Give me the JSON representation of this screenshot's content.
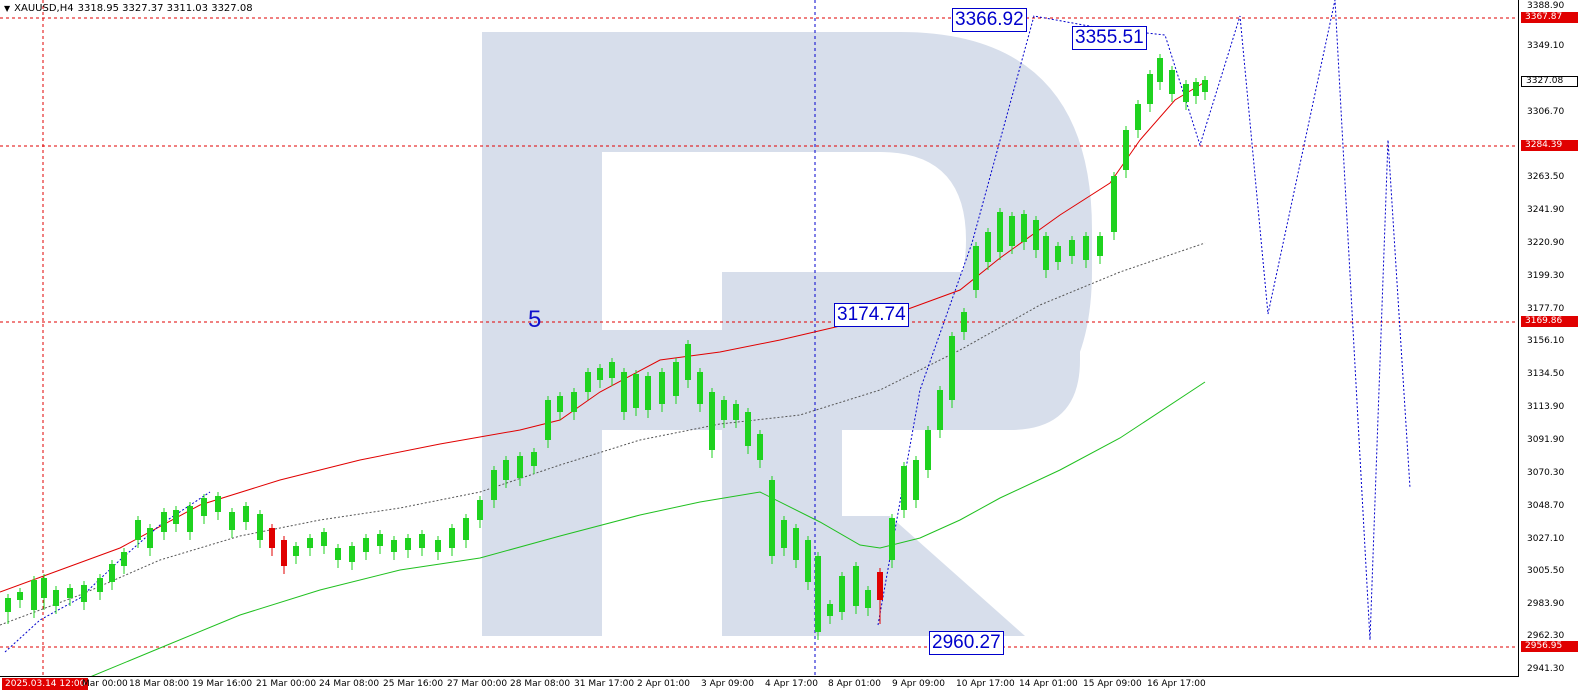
{
  "header": {
    "symbol_timeframe": "XAUUSD,H4",
    "ohlc": "3318.95 3327.37 3311.03 3327.08"
  },
  "price_axis": {
    "ticks": [
      "3349.10",
      "3327.08",
      "3306.70",
      "3263.50",
      "3241.90",
      "3220.90",
      "3199.30",
      "3177.70",
      "3156.10",
      "3134.50",
      "3113.90",
      "3091.90",
      "3070.30",
      "3048.70",
      "3027.10",
      "3005.50",
      "2983.90",
      "2962.30",
      "2941.30",
      "3388.90"
    ]
  },
  "badges": {
    "top_level": "3367.87",
    "current_price": "3327.08",
    "resistance": "3284.39",
    "mid_level": "3169.86",
    "bottom_level": "2956.95"
  },
  "time_axis": {
    "start_badge": "2025.03.14 12:00",
    "labels": [
      "Mar 00:00",
      "18 Mar 08:00",
      "19 Mar 16:00",
      "21 Mar 00:00",
      "24 Mar 08:00",
      "25 Mar 16:00",
      "27 Mar 00:00",
      "28 Mar 08:00",
      "31 Mar 17:00",
      "2 Apr 01:00",
      "3 Apr 09:00",
      "4 Apr 17:00",
      "8 Apr 01:00",
      "9 Apr 09:00",
      "10 Apr 17:00",
      "14 Apr 01:00",
      "15 Apr 09:00",
      "16 Apr 17:00"
    ]
  },
  "annotations": {
    "wave_label": "5",
    "level_high": "3366.92",
    "level_peak": "3355.51",
    "level_mid": "3174.74",
    "level_low": "2960.27"
  },
  "colors": {
    "bull": "#1fd21f",
    "bear": "#e00000",
    "ma_fast": "#e00000",
    "ma_slow": "#20c020",
    "ma_mid": "#555555",
    "forecast": "#0000cc",
    "level_line": "#e00000",
    "watermark": "#d4dcea"
  }
}
